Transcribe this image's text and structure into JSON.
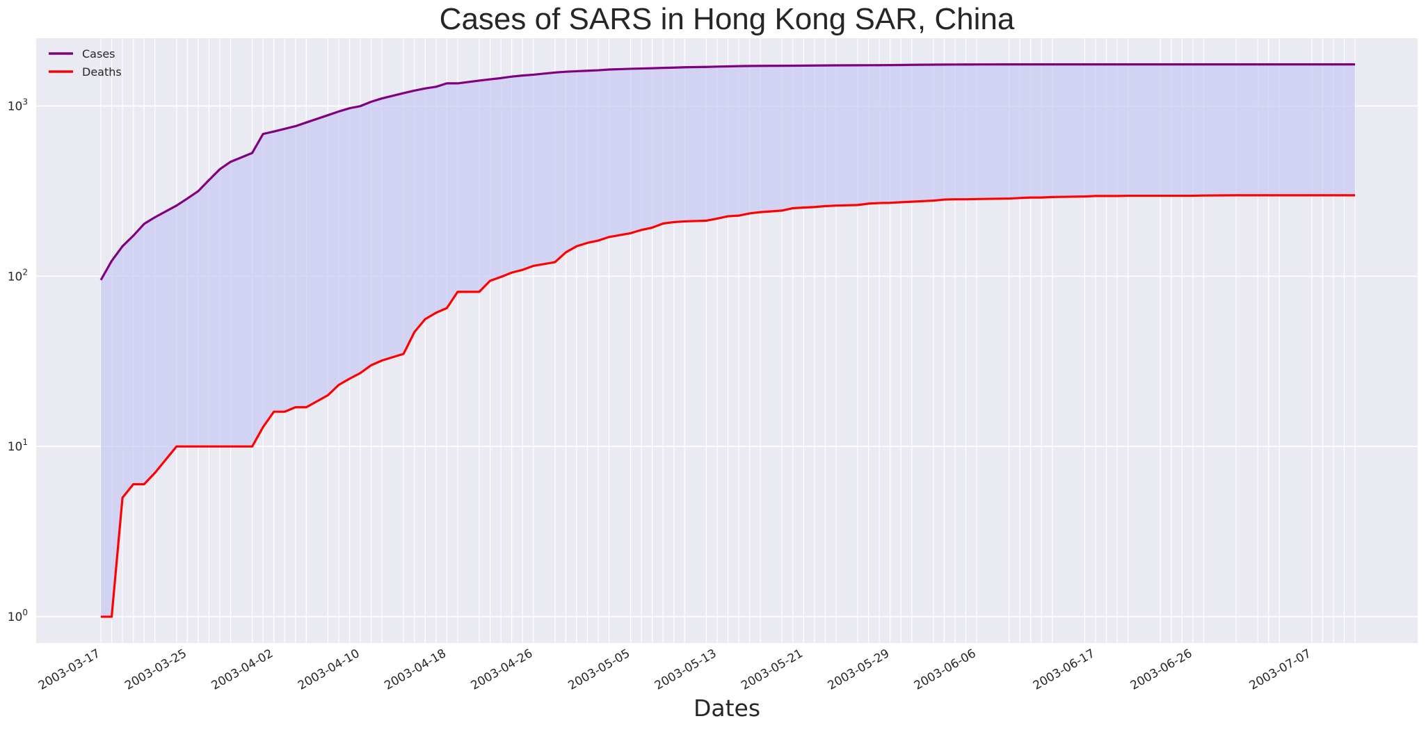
{
  "chart_data": {
    "type": "line",
    "title": "Cases of SARS in Hong Kong SAR, China",
    "xlabel": "Dates",
    "ylabel": "",
    "y_scale": "log",
    "ylim": [
      0.7,
      2500
    ],
    "grid": true,
    "legend_position": "top-left",
    "fill_between_series": true,
    "colors": {
      "background": "#eaeaf2",
      "grid": "#ffffff",
      "fill": "#c8c8f4",
      "cases": "#800080",
      "deaths": "#ff0000",
      "text": "#262626"
    },
    "y_ticks": [
      {
        "value": 1,
        "base": "10",
        "exp": "0"
      },
      {
        "value": 10,
        "base": "10",
        "exp": "1"
      },
      {
        "value": 100,
        "base": "10",
        "exp": "2"
      },
      {
        "value": 1000,
        "base": "10",
        "exp": "3"
      }
    ],
    "x_tick_labels": [
      "2003-03-17",
      "2003-03-25",
      "2003-04-02",
      "2003-04-10",
      "2003-04-18",
      "2003-04-26",
      "2003-05-05",
      "2003-05-13",
      "2003-05-21",
      "2003-05-29",
      "2003-06-06",
      "2003-06-17",
      "2003-06-26",
      "2003-07-07"
    ],
    "dates": [
      "2003-03-17",
      "2003-03-18",
      "2003-03-19",
      "2003-03-20",
      "2003-03-21",
      "2003-03-22",
      "2003-03-24",
      "2003-03-25",
      "2003-03-26",
      "2003-03-27",
      "2003-03-28",
      "2003-03-29",
      "2003-03-31",
      "2003-04-01",
      "2003-04-02",
      "2003-04-03",
      "2003-04-04",
      "2003-04-05",
      "2003-04-07",
      "2003-04-08",
      "2003-04-09",
      "2003-04-10",
      "2003-04-11",
      "2003-04-12",
      "2003-04-14",
      "2003-04-15",
      "2003-04-16",
      "2003-04-17",
      "2003-04-18",
      "2003-04-19",
      "2003-04-21",
      "2003-04-22",
      "2003-04-23",
      "2003-04-24",
      "2003-04-25",
      "2003-04-26",
      "2003-04-28",
      "2003-04-29",
      "2003-04-30",
      "2003-05-01",
      "2003-05-02",
      "2003-05-03",
      "2003-05-05",
      "2003-05-06",
      "2003-05-07",
      "2003-05-08",
      "2003-05-09",
      "2003-05-10",
      "2003-05-12",
      "2003-05-13",
      "2003-05-14",
      "2003-05-15",
      "2003-05-16",
      "2003-05-17",
      "2003-05-19",
      "2003-05-20",
      "2003-05-21",
      "2003-05-22",
      "2003-05-23",
      "2003-05-24",
      "2003-05-26",
      "2003-05-27",
      "2003-05-28",
      "2003-05-29",
      "2003-05-30",
      "2003-05-31",
      "2003-06-02",
      "2003-06-03",
      "2003-06-04",
      "2003-06-05",
      "2003-06-06",
      "2003-06-09",
      "2003-06-10",
      "2003-06-11",
      "2003-06-12",
      "2003-06-13",
      "2003-06-16",
      "2003-06-17",
      "2003-06-18",
      "2003-06-19",
      "2003-06-20",
      "2003-06-23",
      "2003-06-24",
      "2003-06-25",
      "2003-06-26",
      "2003-06-27",
      "2003-06-30",
      "2003-07-02",
      "2003-07-03",
      "2003-07-04",
      "2003-07-07",
      "2003-07-08",
      "2003-07-09",
      "2003-07-10",
      "2003-07-11"
    ],
    "series": [
      {
        "name": "Cases",
        "values": [
          95,
          123,
          150,
          173,
          203,
          222,
          260,
          286,
          316,
          367,
          425,
          470,
          530,
          685,
          708,
          734,
          761,
          800,
          883,
          928,
          970,
          998,
          1059,
          1108,
          1190,
          1232,
          1268,
          1297,
          1358,
          1358,
          1410,
          1435,
          1458,
          1488,
          1510,
          1527,
          1572,
          1589,
          1600,
          1611,
          1621,
          1637,
          1654,
          1660,
          1667,
          1674,
          1680,
          1688,
          1696,
          1703,
          1708,
          1714,
          1718,
          1720,
          1723,
          1724,
          1726,
          1728,
          1730,
          1732,
          1734,
          1736,
          1737,
          1739,
          1741,
          1745,
          1749,
          1751,
          1752,
          1753,
          1754,
          1755,
          1755,
          1755,
          1755,
          1755,
          1755,
          1755,
          1755,
          1755,
          1755,
          1755,
          1755,
          1755,
          1755,
          1755,
          1755,
          1755,
          1755,
          1755,
          1755,
          1755,
          1755,
          1755,
          1755
        ]
      },
      {
        "name": "Deaths",
        "values": [
          1,
          1,
          5,
          6,
          6,
          7,
          10,
          10,
          10,
          10,
          10,
          10,
          10,
          13,
          16,
          16,
          17,
          17,
          20,
          23,
          25,
          27,
          30,
          32,
          35,
          47,
          56,
          61,
          65,
          81,
          81,
          94,
          99,
          105,
          109,
          115,
          121,
          138,
          150,
          157,
          162,
          170,
          179,
          187,
          193,
          204,
          208,
          210,
          212,
          218,
          225,
          227,
          234,
          238,
          243,
          251,
          253,
          255,
          258,
          260,
          262,
          267,
          269,
          270,
          272,
          274,
          278,
          282,
          283,
          283,
          284,
          286,
          288,
          290,
          290,
          292,
          294,
          296,
          296,
          296,
          297,
          297,
          297,
          297,
          297,
          298,
          299,
          299,
          299,
          299,
          299,
          299,
          299,
          299,
          299
        ]
      }
    ]
  }
}
